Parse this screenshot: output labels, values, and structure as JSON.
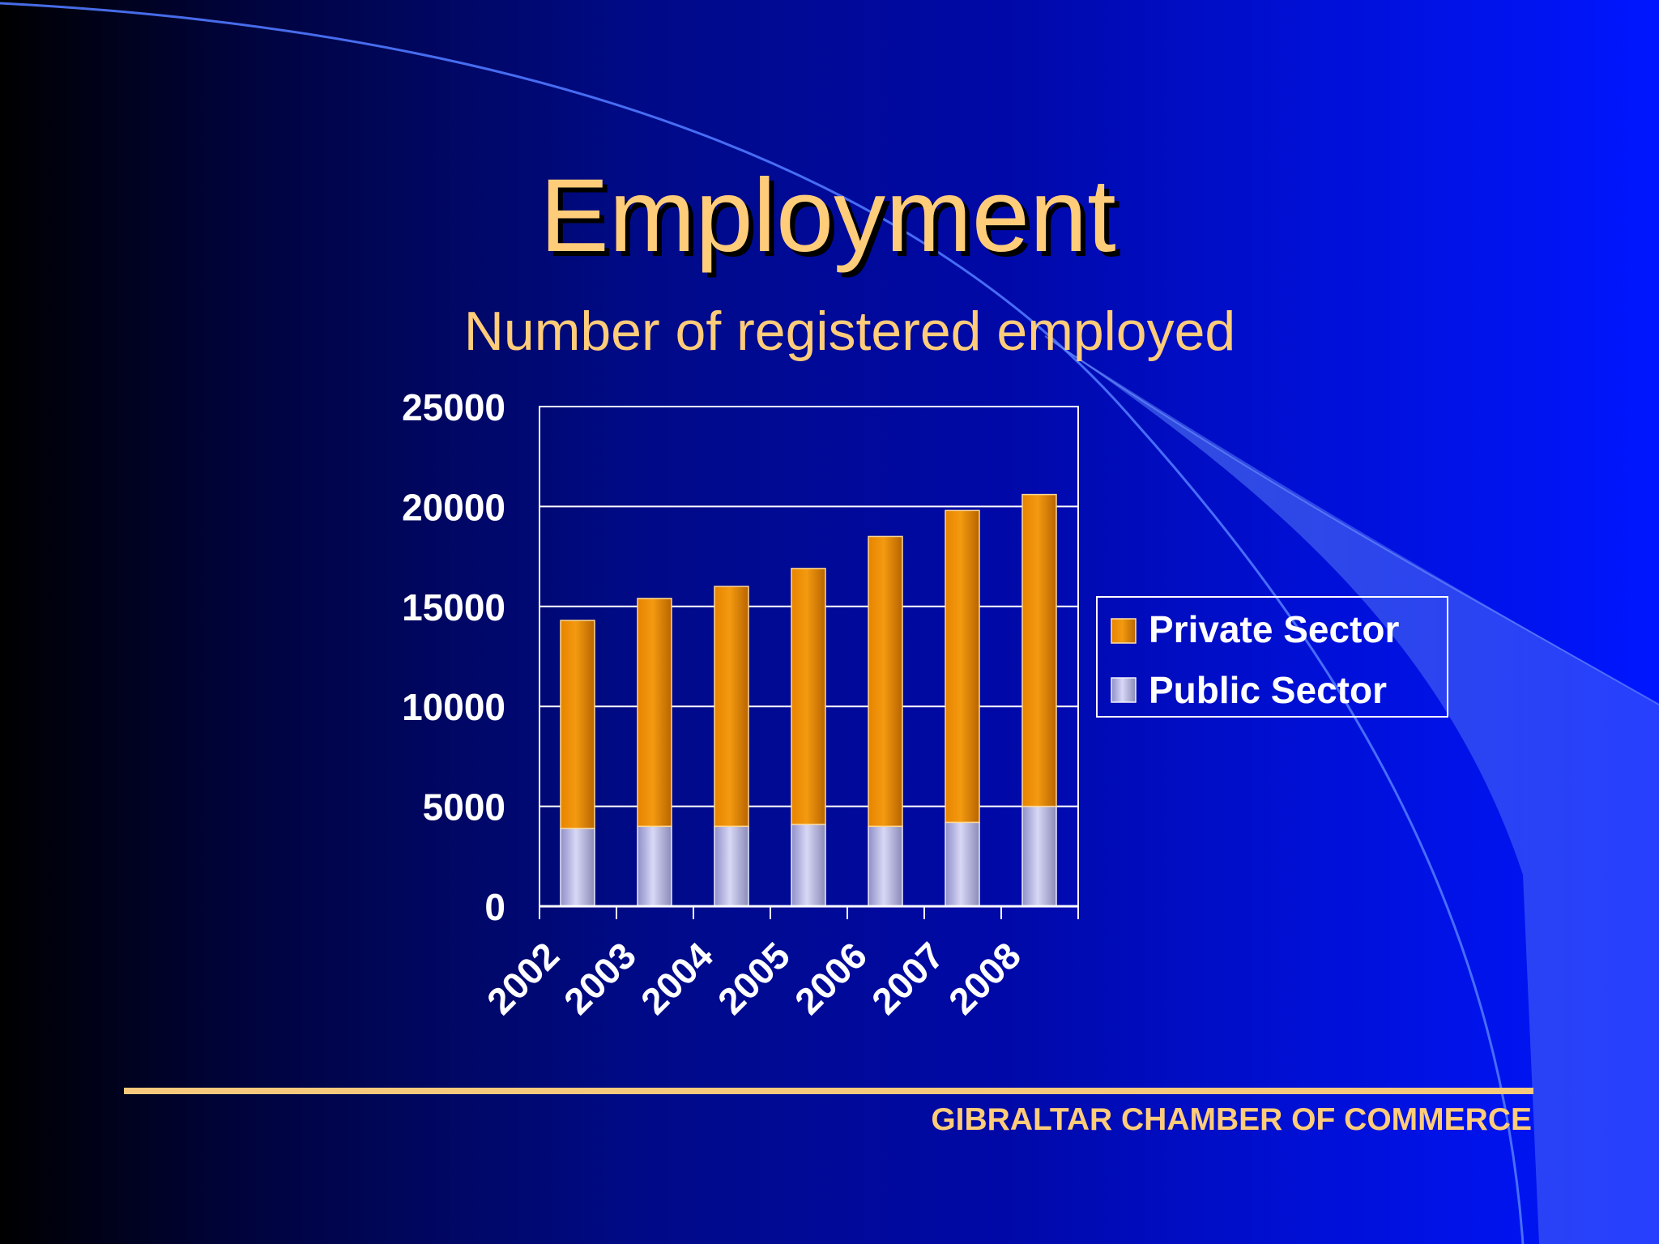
{
  "slide": {
    "title": "Employment",
    "footer": "GIBRALTAR CHAMBER OF COMMERCE"
  },
  "colors": {
    "title": "#ffcc7a",
    "private_sector": "#f08c00",
    "public_sector": "#c8c8f0",
    "axis_text": "#ffffff",
    "footer_rule": "#f7c97c"
  },
  "chart_data": {
    "type": "bar",
    "stacked": true,
    "title": "Number of registered employed",
    "xlabel": "",
    "ylabel": "",
    "categories": [
      "2002",
      "2003",
      "2004",
      "2005",
      "2006",
      "2007",
      "2008"
    ],
    "series": [
      {
        "name": "Public Sector",
        "values": [
          3900,
          4000,
          4000,
          4100,
          4000,
          4200,
          5000
        ]
      },
      {
        "name": "Private Sector",
        "values": [
          10400,
          11400,
          12000,
          12800,
          14500,
          15600,
          15600
        ]
      }
    ],
    "ylim": [
      0,
      25000
    ],
    "yticks": [
      "0",
      "5000",
      "10000",
      "15000",
      "20000",
      "25000"
    ],
    "grid": true,
    "legend": "right",
    "legend_entries": [
      "Private Sector",
      "Public Sector"
    ]
  }
}
